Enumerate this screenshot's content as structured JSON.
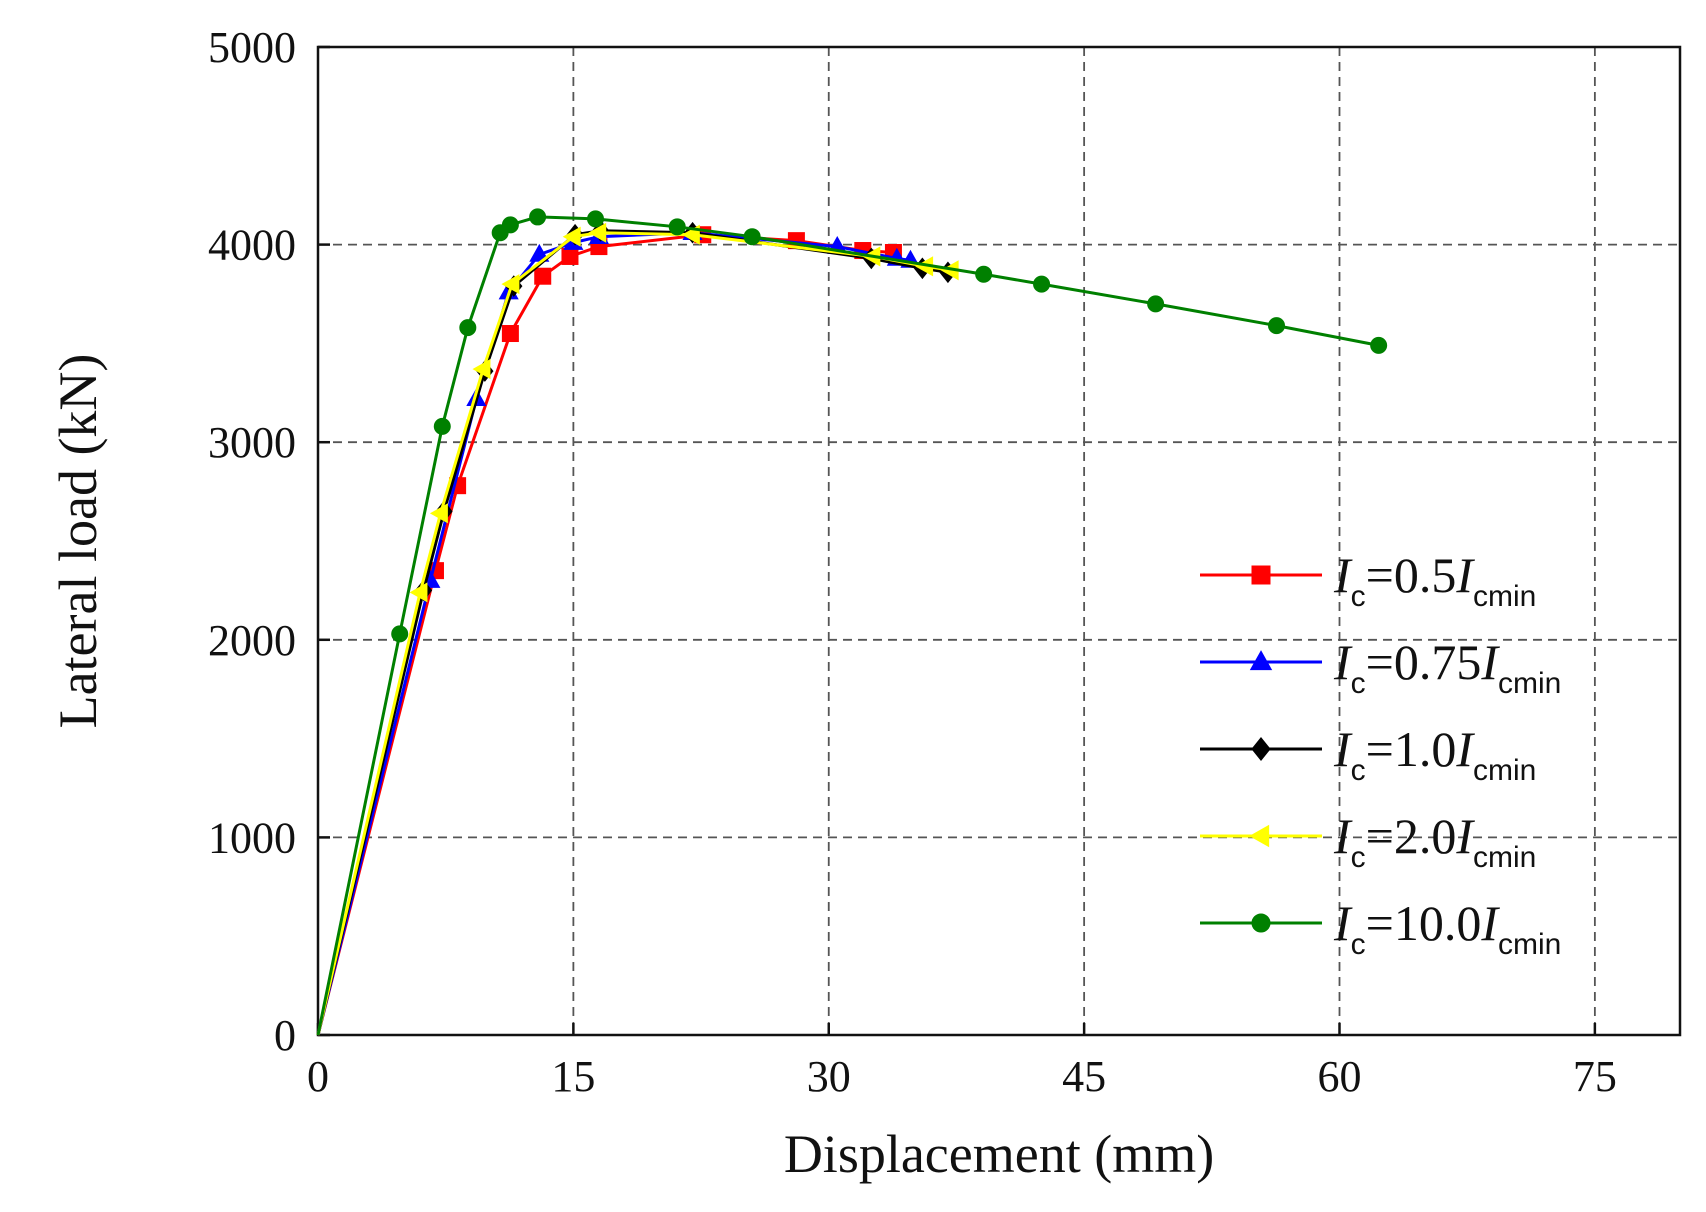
{
  "chart_data": {
    "type": "line",
    "xlabel": "Displacement (mm)",
    "ylabel": "Lateral load (kN)",
    "xlim": [
      0,
      80
    ],
    "ylim": [
      0,
      5000
    ],
    "xticks": [
      0,
      15,
      30,
      45,
      60,
      75
    ],
    "yticks": [
      0,
      1000,
      2000,
      3000,
      4000,
      5000
    ],
    "xtick_labels": [
      "0",
      "15",
      "30",
      "45",
      "60",
      "75"
    ],
    "ytick_labels": [
      "0",
      "1000",
      "2000",
      "3000",
      "4000",
      "5000"
    ],
    "grid": true,
    "legend_position": "right",
    "series": [
      {
        "name": "Ic=0.5Icmin",
        "label_main": "I",
        "label_sub1": "c",
        "label_eq": "=0.5",
        "label_I2": "I",
        "label_sub2": "cmin",
        "color": "#ff0000",
        "marker": "square",
        "x": [
          0,
          6.9,
          8.2,
          11.3,
          13.2,
          14.8,
          16.5,
          22.6,
          28.1,
          32.0,
          33.8
        ],
        "y": [
          0,
          2350,
          2780,
          3550,
          3840,
          3940,
          3990,
          4050,
          4020,
          3970,
          3960
        ]
      },
      {
        "name": "Ic=0.75Icmin",
        "label_main": "I",
        "label_sub1": "c",
        "label_eq": "=0.75",
        "label_I2": "I",
        "label_sub2": "cmin",
        "color": "#0000ff",
        "marker": "triangle-up",
        "x": [
          0,
          6.6,
          9.3,
          11.2,
          13.0,
          15.0,
          16.5,
          22.0,
          30.5,
          34.0,
          34.8
        ],
        "y": [
          0,
          2300,
          3220,
          3760,
          3950,
          4010,
          4040,
          4060,
          3990,
          3930,
          3920
        ]
      },
      {
        "name": "Ic=1.0Icmin",
        "label_main": "I",
        "label_sub1": "c",
        "label_eq": "=1.0",
        "label_I2": "I",
        "label_sub2": "cmin",
        "color": "#000000",
        "marker": "diamond",
        "x": [
          0,
          6.2,
          7.4,
          9.8,
          11.5,
          15.1,
          16.6,
          22.0,
          32.5,
          35.5,
          37.0
        ],
        "y": [
          0,
          2250,
          2650,
          3360,
          3790,
          4050,
          4070,
          4060,
          3930,
          3880,
          3860
        ]
      },
      {
        "name": "Ic=2.0Icmin",
        "label_main": "I",
        "label_sub1": "c",
        "label_eq": "=2.0",
        "label_I2": "I",
        "label_sub2": "cmin",
        "color": "#ffff00",
        "marker": "triangle-left",
        "x": [
          0,
          6.0,
          7.2,
          9.7,
          11.4,
          15.0,
          16.5,
          22.0,
          32.6,
          35.7,
          37.2
        ],
        "y": [
          0,
          2240,
          2640,
          3370,
          3800,
          4040,
          4060,
          4050,
          3940,
          3890,
          3870
        ]
      },
      {
        "name": "Ic=10.0Icmin",
        "label_main": "I",
        "label_sub1": "c",
        "label_eq": "=10.0",
        "label_I2": "I",
        "label_sub2": "cmin",
        "color": "#008000",
        "marker": "circle",
        "x": [
          0,
          4.8,
          7.3,
          8.8,
          10.7,
          11.3,
          12.9,
          16.3,
          21.1,
          25.5,
          39.1,
          42.5,
          49.2,
          56.3,
          62.3
        ],
        "y": [
          0,
          2030,
          3080,
          3580,
          4060,
          4100,
          4140,
          4130,
          4090,
          4040,
          3850,
          3800,
          3700,
          3590,
          3490
        ]
      }
    ]
  }
}
